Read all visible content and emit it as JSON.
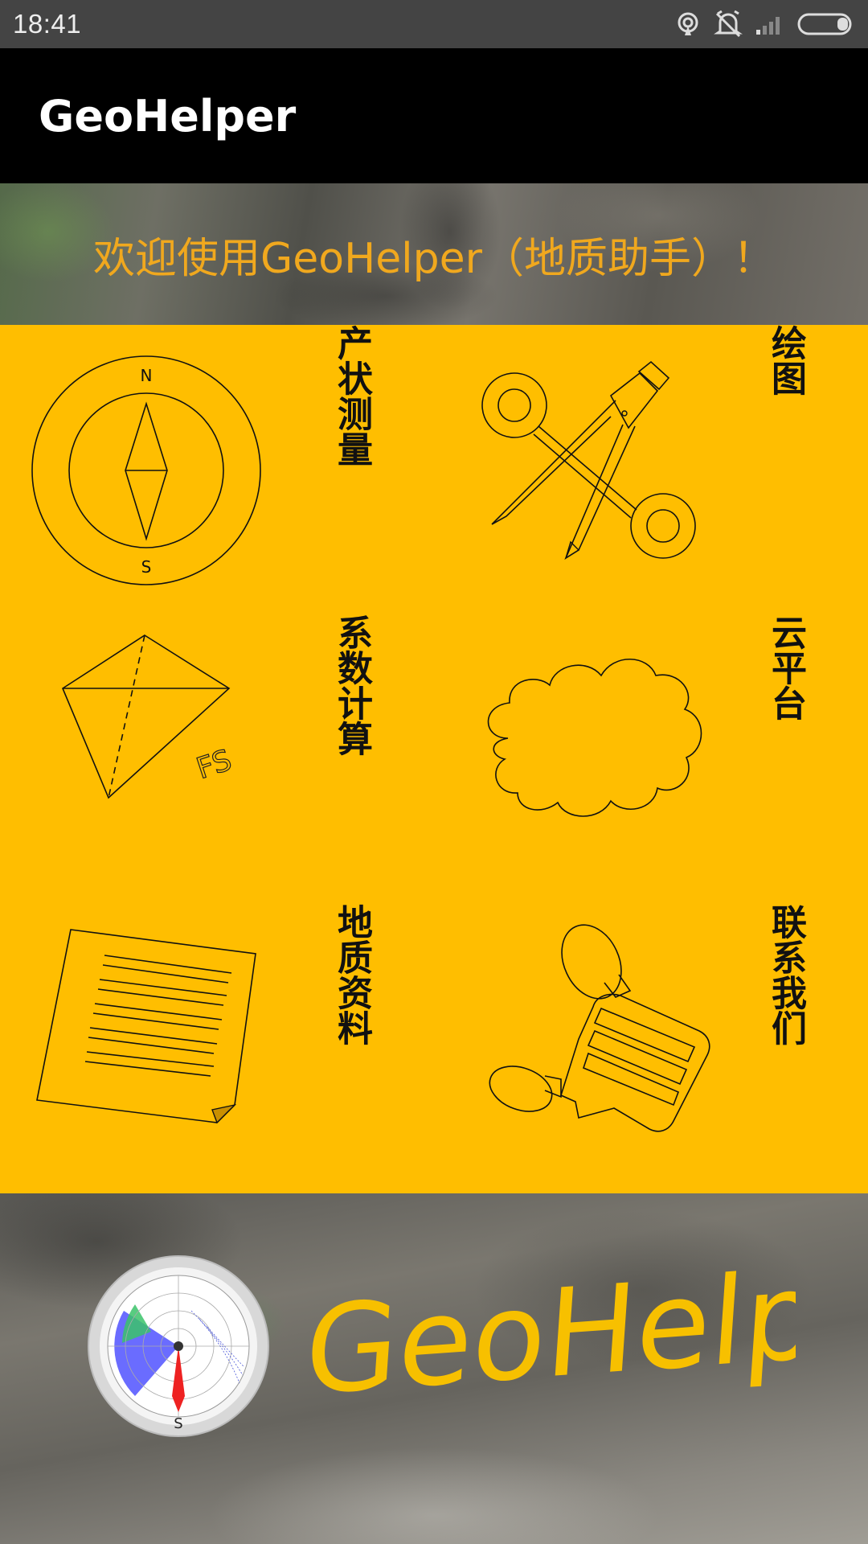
{
  "status_bar": {
    "time": "18:41",
    "icons": [
      "hotspot-icon",
      "alarm-off-icon",
      "signal-icon",
      "battery-icon"
    ]
  },
  "app_bar": {
    "title": "GeoHelper"
  },
  "welcome": {
    "text": "欢迎使用GeoHelper（地质助手）！"
  },
  "colors": {
    "accent": "#ffbe00",
    "welcome_text": "#f0a81e",
    "app_bar": "#000000",
    "status_bar": "#444444"
  },
  "menu": [
    {
      "label": "产状测量",
      "icon": "compass-icon",
      "compass_n": "N",
      "compass_s": "S"
    },
    {
      "label": "绘图",
      "icon": "drafting-compass-icon"
    },
    {
      "label": "系数计算",
      "icon": "kite-shape-icon",
      "fs": "FS"
    },
    {
      "label": "云平台",
      "icon": "cloud-icon"
    },
    {
      "label": "地质资料",
      "icon": "document-icon"
    },
    {
      "label": "联系我们",
      "icon": "contact-speech-icon"
    }
  ],
  "footer": {
    "wordmark": "GeoHelper",
    "logo": "stereonet-logo"
  }
}
